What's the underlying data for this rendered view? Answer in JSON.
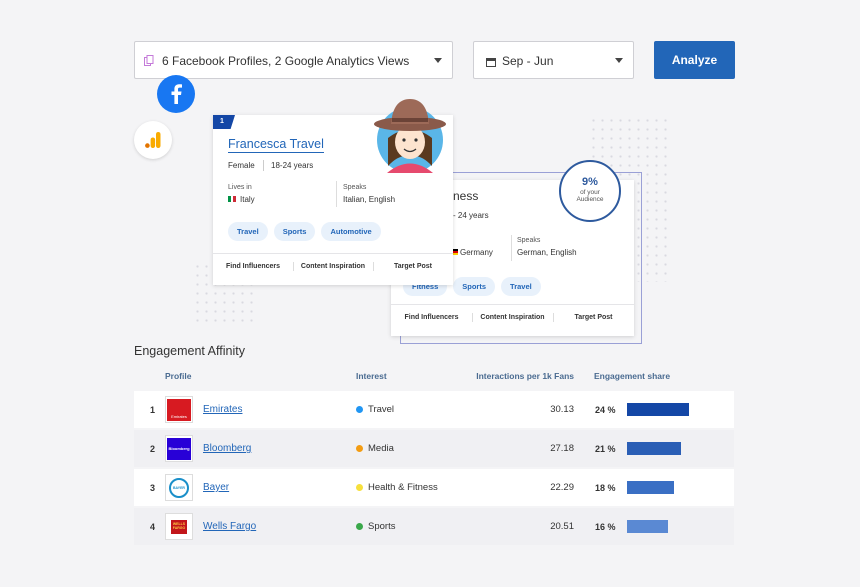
{
  "toolbar": {
    "profiles_select": "6 Facebook Profiles, 2 Google Analytics Views",
    "date_select": "Sep - Jun",
    "analyze_label": "Analyze"
  },
  "card_front": {
    "rank": "1",
    "name": "Francesca Travel",
    "gender": "Female",
    "age": "18-24 years",
    "lives_in_label": "Lives in",
    "lives_in": "Italy",
    "speaks_label": "Speaks",
    "speaks": "Italian, English",
    "tags": [
      "Travel",
      "Sports",
      "Automotive"
    ],
    "actions": [
      "Find Influencers",
      "Content Inspiration",
      "Target Post"
    ]
  },
  "card_back": {
    "name_partial": "ness",
    "age_partial": "- 24 years",
    "lives_in": "Germany",
    "speaks_label": "Speaks",
    "speaks": "German, English",
    "tags": [
      "Fitness",
      "Sports",
      "Travel"
    ],
    "actions": [
      "Find Influencers",
      "Content Inspiration",
      "Target Post"
    ]
  },
  "audience_badge": {
    "value": "9%",
    "line1": "of your",
    "line2": "Audience"
  },
  "engagement": {
    "title": "Engagement Affinity",
    "columns": [
      "Profile",
      "Interest",
      "Interactions per 1k Fans",
      "Engagement share"
    ],
    "rows": [
      {
        "rank": "1",
        "profile": "Emirates",
        "logo_text": "Emirates",
        "interest": "Travel",
        "dot_color": "#2196f3",
        "interactions": "30.13",
        "share_label": "24 %",
        "share": 24,
        "bar_color": "#1447a6"
      },
      {
        "rank": "2",
        "profile": "Bloomberg",
        "logo_text": "Bloomberg",
        "interest": "Media",
        "dot_color": "#f39c12",
        "interactions": "27.18",
        "share_label": "21 %",
        "share": 21,
        "bar_color": "#2a5eb5"
      },
      {
        "rank": "3",
        "profile": "Bayer",
        "logo_text": "BAYER",
        "interest": "Health & Fitness",
        "dot_color": "#f7e03c",
        "interactions": "22.29",
        "share_label": "18 %",
        "share": 18,
        "bar_color": "#3a6fc4"
      },
      {
        "rank": "4",
        "profile": "Wells Fargo",
        "logo_text": "WELLS FARGO",
        "interest": "Sports",
        "dot_color": "#3aa84a",
        "interactions": "20.51",
        "share_label": "16 %",
        "share": 16,
        "bar_color": "#5a89d3"
      }
    ]
  },
  "colors": {
    "accent": "#2266b8",
    "facebook": "#1877f2",
    "analytics": "#f9ab00"
  },
  "icons": [
    "copy-icon",
    "calendar-icon",
    "facebook-icon",
    "google-analytics-icon",
    "italy-flag-icon",
    "germany-flag-icon",
    "avatar"
  ]
}
